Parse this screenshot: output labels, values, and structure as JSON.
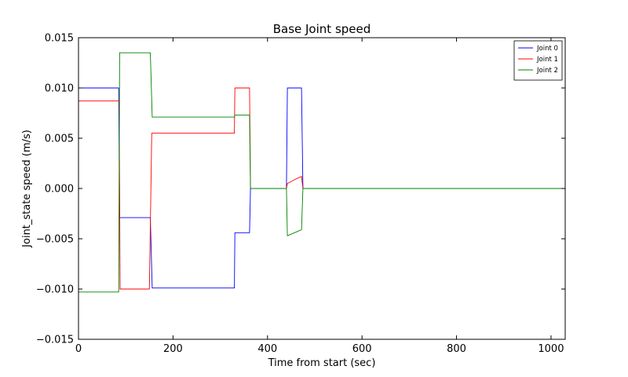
{
  "chart_data": {
    "type": "line",
    "title": "Base Joint speed",
    "xlabel": "Time from start (sec)",
    "ylabel": "Joint_state speed (m/s)",
    "xlim": [
      0,
      1030
    ],
    "ylim": [
      -0.015,
      0.015
    ],
    "xticks": [
      0,
      200,
      400,
      600,
      800,
      1000
    ],
    "yticks": [
      -0.015,
      -0.01,
      -0.005,
      0.0,
      0.005,
      0.01,
      0.015
    ],
    "ytick_labels": [
      "−0.015",
      "−0.010",
      "−0.005",
      "0.000",
      "0.005",
      "0.010",
      "0.015"
    ],
    "grid": false,
    "legend_position": "top-right",
    "series": [
      {
        "name": "Joint 0",
        "color": "#0000ff",
        "points": [
          [
            0,
            0.01
          ],
          [
            85,
            0.01
          ],
          [
            87,
            -0.0029
          ],
          [
            152,
            -0.0029
          ],
          [
            156,
            -0.0099
          ],
          [
            330,
            -0.0099
          ],
          [
            331,
            -0.0044
          ],
          [
            362,
            -0.0044
          ],
          [
            364,
            0.0
          ],
          [
            440,
            0.0
          ],
          [
            442,
            0.01
          ],
          [
            472,
            0.01
          ],
          [
            475,
            0.0
          ],
          [
            1030,
            0.0
          ]
        ]
      },
      {
        "name": "Joint 1",
        "color": "#ff0000",
        "points": [
          [
            0,
            0.0087
          ],
          [
            86,
            0.0087
          ],
          [
            88,
            -0.01
          ],
          [
            150,
            -0.01
          ],
          [
            155,
            0.0055
          ],
          [
            330,
            0.0055
          ],
          [
            331,
            0.01
          ],
          [
            362,
            0.01
          ],
          [
            364,
            0.0
          ],
          [
            440,
            0.0
          ],
          [
            442,
            0.0005
          ],
          [
            458,
            0.0009
          ],
          [
            472,
            0.0012
          ],
          [
            475,
            0.0
          ],
          [
            1030,
            0.0
          ]
        ]
      },
      {
        "name": "Joint 2",
        "color": "#008000",
        "points": [
          [
            0,
            -0.0103
          ],
          [
            85,
            -0.0103
          ],
          [
            87,
            0.0135
          ],
          [
            152,
            0.0135
          ],
          [
            156,
            0.0071
          ],
          [
            330,
            0.0071
          ],
          [
            331,
            0.0073
          ],
          [
            362,
            0.0073
          ],
          [
            364,
            0.0
          ],
          [
            440,
            0.0
          ],
          [
            442,
            -0.0047
          ],
          [
            472,
            -0.0041
          ],
          [
            475,
            0.0
          ],
          [
            1030,
            0.0
          ]
        ]
      }
    ]
  }
}
